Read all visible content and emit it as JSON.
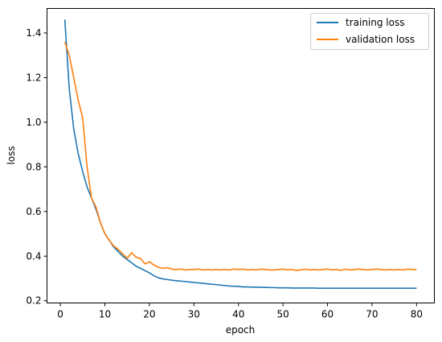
{
  "chart_data": {
    "type": "line",
    "xlabel": "epoch",
    "ylabel": "loss",
    "xlim": [
      -3.0,
      84.0
    ],
    "ylim": [
      0.19,
      1.51
    ],
    "xticks": [
      0,
      10,
      20,
      30,
      40,
      50,
      60,
      70,
      80
    ],
    "yticks": [
      0.2,
      0.4,
      0.6,
      0.8,
      1.0,
      1.2,
      1.4
    ],
    "legend_position": "top-right",
    "grid": false,
    "series": [
      {
        "name": "training loss",
        "color": "#1f77b4",
        "x": [
          1,
          2,
          3,
          4,
          5,
          6,
          7,
          8,
          9,
          10,
          11,
          12,
          13,
          14,
          15,
          16,
          17,
          18,
          19,
          20,
          21,
          22,
          23,
          24,
          25,
          26,
          27,
          28,
          29,
          30,
          31,
          32,
          33,
          34,
          35,
          36,
          37,
          38,
          39,
          40,
          41,
          42,
          43,
          44,
          45,
          46,
          47,
          48,
          49,
          50,
          51,
          52,
          53,
          54,
          55,
          56,
          57,
          58,
          59,
          60,
          61,
          62,
          63,
          64,
          65,
          66,
          67,
          68,
          69,
          70,
          71,
          72,
          73,
          74,
          75,
          76,
          77,
          78,
          79,
          80
        ],
        "values": [
          1.46,
          1.15,
          0.97,
          0.86,
          0.78,
          0.71,
          0.66,
          0.61,
          0.55,
          0.5,
          0.47,
          0.44,
          0.42,
          0.4,
          0.385,
          0.37,
          0.355,
          0.345,
          0.335,
          0.325,
          0.312,
          0.303,
          0.298,
          0.295,
          0.292,
          0.29,
          0.288,
          0.286,
          0.284,
          0.282,
          0.28,
          0.278,
          0.276,
          0.274,
          0.272,
          0.27,
          0.268,
          0.266,
          0.265,
          0.264,
          0.262,
          0.262,
          0.261,
          0.261,
          0.26,
          0.26,
          0.259,
          0.259,
          0.258,
          0.258,
          0.258,
          0.257,
          0.257,
          0.257,
          0.257,
          0.257,
          0.257,
          0.256,
          0.256,
          0.256,
          0.256,
          0.256,
          0.256,
          0.256,
          0.256,
          0.256,
          0.256,
          0.256,
          0.256,
          0.256,
          0.256,
          0.256,
          0.256,
          0.256,
          0.256,
          0.256,
          0.256,
          0.256,
          0.256,
          0.256
        ]
      },
      {
        "name": "validation loss",
        "color": "#ff7f0e",
        "x": [
          1,
          2,
          3,
          4,
          5,
          6,
          7,
          8,
          9,
          10,
          11,
          12,
          13,
          14,
          15,
          16,
          17,
          18,
          19,
          20,
          21,
          22,
          23,
          24,
          25,
          26,
          27,
          28,
          29,
          30,
          31,
          32,
          33,
          34,
          35,
          36,
          37,
          38,
          39,
          40,
          41,
          42,
          43,
          44,
          45,
          46,
          47,
          48,
          49,
          50,
          51,
          52,
          53,
          54,
          55,
          56,
          57,
          58,
          59,
          60,
          61,
          62,
          63,
          64,
          65,
          66,
          67,
          68,
          69,
          70,
          71,
          72,
          73,
          74,
          75,
          76,
          77,
          78,
          79,
          80
        ],
        "values": [
          1.36,
          1.3,
          1.2,
          1.1,
          1.02,
          0.8,
          0.66,
          0.62,
          0.55,
          0.5,
          0.47,
          0.445,
          0.43,
          0.41,
          0.39,
          0.415,
          0.395,
          0.39,
          0.365,
          0.375,
          0.36,
          0.35,
          0.345,
          0.348,
          0.342,
          0.34,
          0.342,
          0.338,
          0.34,
          0.34,
          0.342,
          0.338,
          0.34,
          0.338,
          0.34,
          0.338,
          0.34,
          0.338,
          0.342,
          0.34,
          0.342,
          0.338,
          0.34,
          0.338,
          0.342,
          0.34,
          0.338,
          0.338,
          0.34,
          0.342,
          0.338,
          0.34,
          0.336,
          0.338,
          0.342,
          0.338,
          0.34,
          0.338,
          0.34,
          0.342,
          0.338,
          0.34,
          0.336,
          0.342,
          0.338,
          0.34,
          0.342,
          0.34,
          0.338,
          0.34,
          0.342,
          0.34,
          0.338,
          0.34,
          0.338,
          0.34,
          0.338,
          0.342,
          0.34,
          0.34
        ]
      }
    ]
  }
}
